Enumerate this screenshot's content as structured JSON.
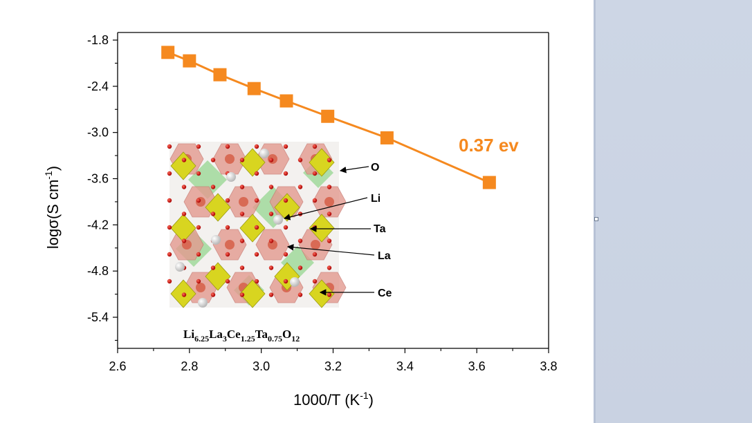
{
  "chart_data": {
    "type": "line",
    "x_tick_labels": [
      "2.6",
      "2.8",
      "3.0",
      "3.2",
      "3.4",
      "3.6",
      "3.8"
    ],
    "y_tick_labels": [
      "-1.8",
      "-2.4",
      "-3.0",
      "-3.6",
      "-4.2",
      "-4.8",
      "-5.4"
    ],
    "xlim": [
      2.6,
      3.8
    ],
    "ylim": [
      -5.8,
      -1.6
    ],
    "xlabel": "1000/T (K",
    "xlabel_sup": "-1",
    "xlabel_tail": ")",
    "ylabel": "logσ(S cm",
    "ylabel_sup": "-1",
    "ylabel_tail": ")",
    "series": [
      {
        "color": "#f5891f",
        "marker": "square",
        "x": [
          2.74,
          2.8,
          2.885,
          2.98,
          3.07,
          3.185,
          3.35,
          3.635
        ],
        "y": [
          -1.96,
          -2.07,
          -2.25,
          -2.43,
          -2.59,
          -2.79,
          -3.07,
          -3.65
        ]
      }
    ],
    "annotation": {
      "text": "0.37 ev",
      "color": "#f5891f"
    },
    "grid": false
  },
  "inset": {
    "labels": [
      "O",
      "Li",
      "Ta",
      "La",
      "Ce"
    ],
    "formula": {
      "parts": [
        {
          "t": "Li",
          "sub": false
        },
        {
          "t": "6.25",
          "sub": true
        },
        {
          "t": "La",
          "sub": false
        },
        {
          "t": "3",
          "sub": true
        },
        {
          "t": "Ce",
          "sub": false
        },
        {
          "t": "1.25",
          "sub": true
        },
        {
          "t": "Ta",
          "sub": false
        },
        {
          "t": "0.75",
          "sub": true
        },
        {
          "t": "O",
          "sub": false
        },
        {
          "t": "12",
          "sub": true
        }
      ]
    }
  }
}
